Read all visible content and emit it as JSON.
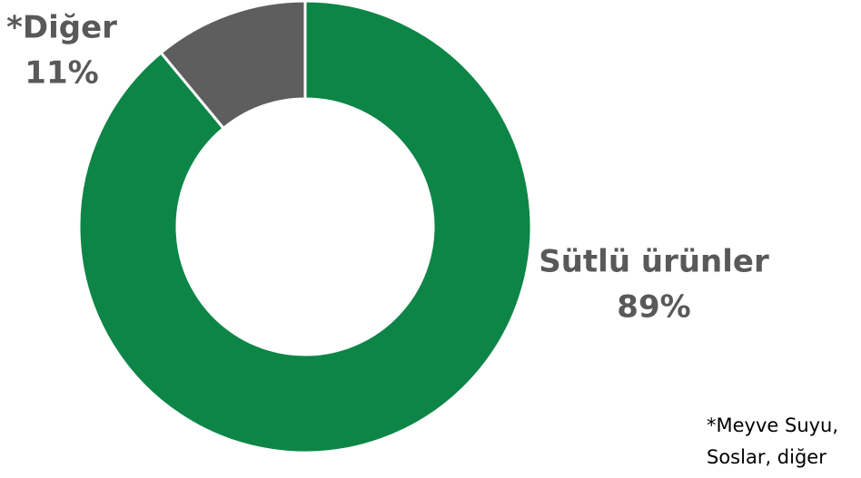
{
  "chart_data": {
    "type": "donut",
    "categories": [
      "Sütlü ürünler",
      "*Diğer"
    ],
    "values": [
      89,
      11
    ],
    "value_labels": [
      "89%",
      "11%"
    ],
    "colors": [
      "#0d8547",
      "#5e5e5e"
    ],
    "note": [
      "*Meyve Suyu,",
      "Soslar, diğer"
    ]
  }
}
